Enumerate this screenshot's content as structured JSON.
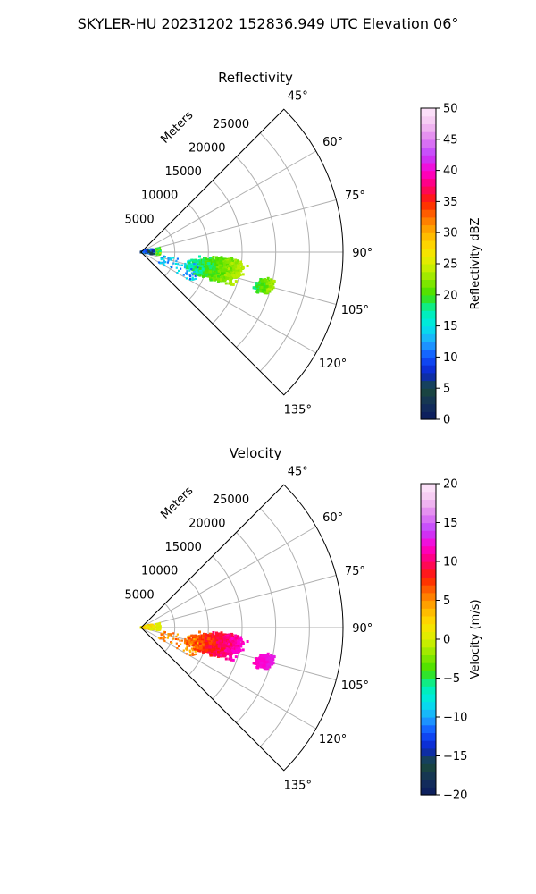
{
  "figure_title": "SKYLER-HU  20231202  152836.949 UTC Elevation 06°",
  "colors": {
    "sector_edge": "#000000",
    "grid": "#b0b0b0",
    "background": "#ffffff"
  },
  "chart_data": [
    {
      "type": "heatmap",
      "subtype": "polar-sector (PPI)",
      "title": "Reflectivity",
      "range_label": "Meters",
      "range_ticks": [
        "5000",
        "10000",
        "15000",
        "20000",
        "25000"
      ],
      "range_tick_values": [
        5000,
        10000,
        15000,
        20000,
        25000
      ],
      "rlim": [
        0,
        30000
      ],
      "azimuth_ticks": [
        "45°",
        "60°",
        "75°",
        "90°",
        "105°",
        "120°",
        "135°"
      ],
      "azimuth_tick_values": [
        45,
        60,
        75,
        90,
        105,
        120,
        135
      ],
      "thetalim": [
        45,
        135
      ],
      "grid": true,
      "colorbar": {
        "label": "Reflectivity dBZ",
        "range": [
          0,
          50
        ],
        "ticks": [
          "0",
          "5",
          "10",
          "15",
          "20",
          "25",
          "30",
          "35",
          "40",
          "45",
          "50"
        ],
        "tick_values": [
          0,
          5,
          10,
          15,
          20,
          25,
          30,
          35,
          40,
          45,
          50
        ],
        "stops": [
          "#0a1a5e",
          "#14305a",
          "#1a4a3a",
          "#0a24c8",
          "#1050ff",
          "#20a8ff",
          "#00e8e8",
          "#00f0b0",
          "#40e000",
          "#90e800",
          "#d8f000",
          "#ffe000",
          "#ffb000",
          "#ff7000",
          "#ff2000",
          "#ff0070",
          "#ff00d0",
          "#c040ff",
          "#e080f0",
          "#f4c4f0",
          "#fde8fa"
        ]
      },
      "echo_regions": [
        {
          "feature": "main echo",
          "az_from": 94,
          "az_to": 112,
          "r_from": 7000,
          "r_to": 15500,
          "value_range": [
            15,
            24
          ]
        },
        {
          "feature": "eastern echo",
          "az_from": 102,
          "az_to": 109,
          "r_from": 17500,
          "r_to": 20500,
          "value_range": [
            16,
            24
          ]
        },
        {
          "feature": "near-radar clutter",
          "az_from": 72,
          "az_to": 100,
          "r_from": 0,
          "r_to": 2000,
          "value_range": [
            3,
            14
          ]
        },
        {
          "feature": "arc clutter",
          "az_from": 75,
          "az_to": 100,
          "r_from": 2300,
          "r_to": 2900,
          "value_range": [
            18,
            24
          ]
        },
        {
          "feature": "scattered speckle",
          "az_from": 100,
          "az_to": 120,
          "r_from": 3000,
          "r_to": 9000,
          "value_range": [
            10,
            16
          ]
        }
      ]
    },
    {
      "type": "heatmap",
      "subtype": "polar-sector (PPI)",
      "title": "Velocity",
      "range_label": "Meters",
      "range_ticks": [
        "5000",
        "10000",
        "15000",
        "20000",
        "25000"
      ],
      "range_tick_values": [
        5000,
        10000,
        15000,
        20000,
        25000
      ],
      "rlim": [
        0,
        30000
      ],
      "azimuth_ticks": [
        "45°",
        "60°",
        "75°",
        "90°",
        "105°",
        "120°",
        "135°"
      ],
      "azimuth_tick_values": [
        45,
        60,
        75,
        90,
        105,
        120,
        135
      ],
      "thetalim": [
        45,
        135
      ],
      "grid": true,
      "colorbar": {
        "label": "Velocity (m/s)",
        "range": [
          -20,
          20
        ],
        "ticks": [
          "−20",
          "−15",
          "−10",
          "−5",
          "0",
          "5",
          "10",
          "15",
          "20"
        ],
        "tick_values": [
          -20,
          -15,
          -10,
          -5,
          0,
          5,
          10,
          15,
          20
        ],
        "stops": [
          "#0a1a5e",
          "#14305a",
          "#1a4a3a",
          "#0a24c8",
          "#1050ff",
          "#20a8ff",
          "#00e8e8",
          "#00f0b0",
          "#40e000",
          "#90e800",
          "#d8f000",
          "#ffe000",
          "#ffb000",
          "#ff7000",
          "#ff2000",
          "#ff0070",
          "#ff00d0",
          "#c040ff",
          "#e080f0",
          "#f4c4f0",
          "#fde8fa"
        ]
      },
      "echo_regions": [
        {
          "feature": "main echo",
          "az_from": 94,
          "az_to": 112,
          "r_from": 7000,
          "r_to": 15500,
          "value_range": [
            4,
            12
          ]
        },
        {
          "feature": "eastern echo",
          "az_from": 102,
          "az_to": 109,
          "r_from": 17500,
          "r_to": 20500,
          "value_range": [
            11,
            13
          ]
        },
        {
          "feature": "near-radar clutter",
          "az_from": 72,
          "az_to": 100,
          "r_from": 0,
          "r_to": 2000,
          "value_range": [
            0,
            4
          ]
        },
        {
          "feature": "arc clutter",
          "az_from": 75,
          "az_to": 100,
          "r_from": 2300,
          "r_to": 2900,
          "value_range": [
            0,
            1
          ]
        },
        {
          "feature": "scattered speckle",
          "az_from": 100,
          "az_to": 120,
          "r_from": 3000,
          "r_to": 9000,
          "value_range": [
            3,
            7
          ]
        }
      ]
    }
  ]
}
